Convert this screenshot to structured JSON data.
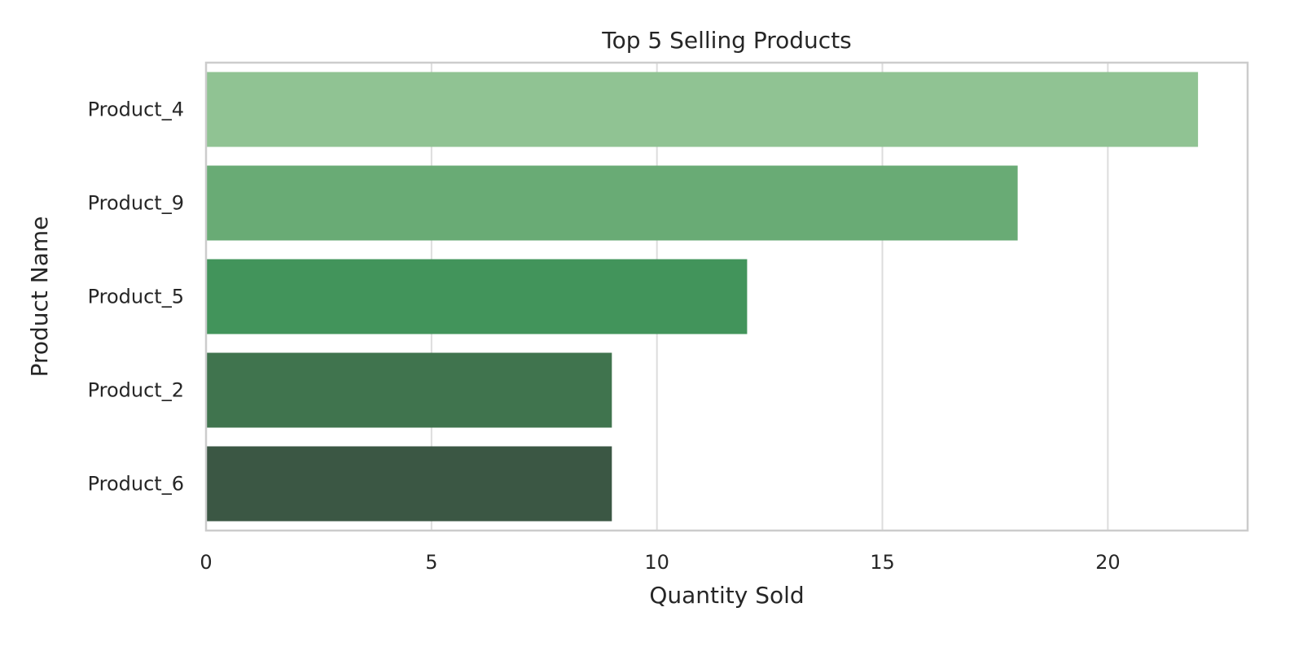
{
  "chart_data": {
    "type": "bar",
    "orientation": "horizontal",
    "title": "Top 5 Selling Products",
    "xlabel": "Quantity Sold",
    "ylabel": "Product Name",
    "categories": [
      "Product_4",
      "Product_9",
      "Product_5",
      "Product_2",
      "Product_6"
    ],
    "values": [
      22,
      18,
      12,
      9,
      9
    ],
    "colors": [
      "#90c393",
      "#69ab75",
      "#42945b",
      "#40744e",
      "#3b5744"
    ],
    "xlim": [
      0,
      23.1
    ],
    "xticks": [
      0,
      5,
      10,
      15,
      20
    ],
    "grid": true,
    "legend": "none"
  }
}
